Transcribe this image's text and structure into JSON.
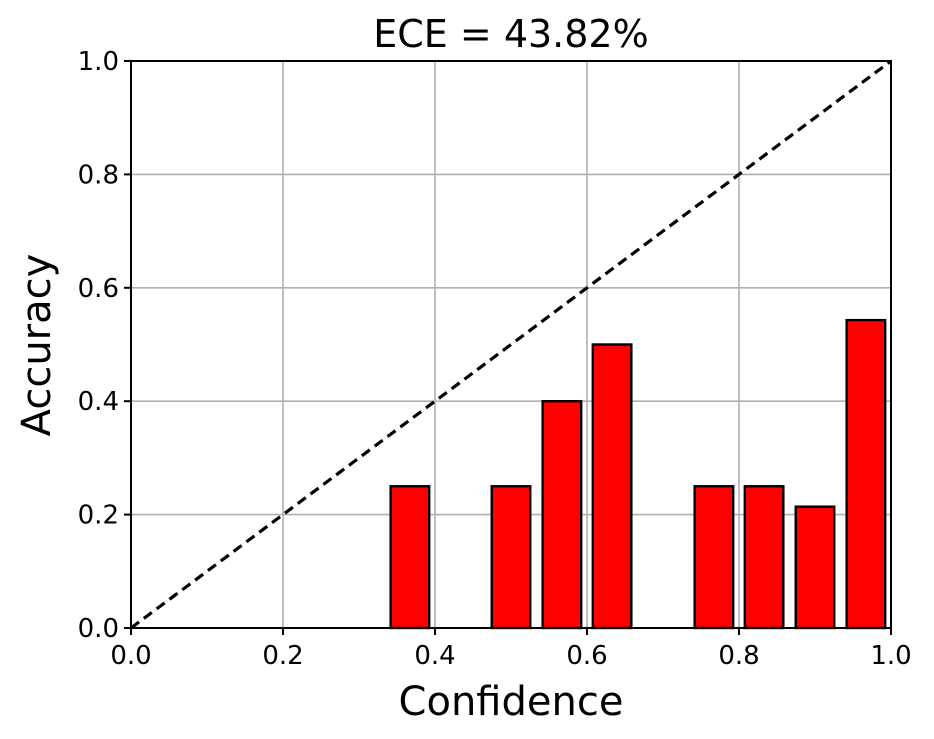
{
  "chart_data": {
    "type": "bar",
    "title": "ECE = 43.82%",
    "xlabel": "Confidence",
    "ylabel": "Accuracy",
    "xlim": [
      0.0,
      1.0
    ],
    "ylim": [
      0.0,
      1.0
    ],
    "x_ticks": [
      "0.0",
      "0.2",
      "0.4",
      "0.6",
      "0.8",
      "1.0"
    ],
    "y_ticks": [
      "0.0",
      "0.2",
      "0.4",
      "0.6",
      "0.8",
      "1.0"
    ],
    "grid": true,
    "bar_color": "#ff0000",
    "bar_edge_color": "#000000",
    "reference_line": {
      "style": "dashed",
      "from": [
        0.0,
        0.0
      ],
      "to": [
        1.0,
        1.0
      ],
      "color": "#000000"
    },
    "bins": [
      {
        "x": 0.367,
        "value": 0.25
      },
      {
        "x": 0.5,
        "value": 0.25
      },
      {
        "x": 0.567,
        "value": 0.4
      },
      {
        "x": 0.633,
        "value": 0.5
      },
      {
        "x": 0.767,
        "value": 0.25
      },
      {
        "x": 0.833,
        "value": 0.25
      },
      {
        "x": 0.9,
        "value": 0.214
      },
      {
        "x": 0.967,
        "value": 0.543
      }
    ],
    "bin_width": 0.0667
  }
}
